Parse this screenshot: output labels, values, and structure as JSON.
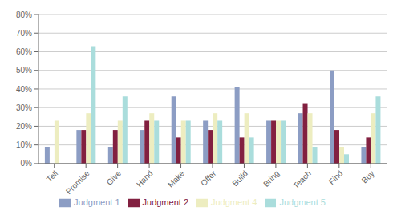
{
  "chart_data": {
    "type": "bar",
    "categories": [
      "Tell",
      "Promise",
      "Give",
      "Hand",
      "Make",
      "Offer",
      "Build",
      "Bring",
      "Teach",
      "Find",
      "Buy"
    ],
    "series": [
      {
        "name": "Judgment 1",
        "color": "#8C9DC4",
        "values": [
          9,
          18,
          9,
          18,
          36,
          23,
          41,
          23,
          27,
          50,
          9
        ]
      },
      {
        "name": "Judgment 2",
        "color": "#822040",
        "values": [
          0,
          18,
          18,
          23,
          14,
          18,
          14,
          23,
          32,
          18,
          14
        ]
      },
      {
        "name": "Judgment 4",
        "color": "#EDEDC0",
        "values": [
          23,
          27,
          23,
          27,
          23,
          27,
          27,
          23,
          27,
          9,
          27
        ]
      },
      {
        "name": "Judgment 5",
        "color": "#AADDDC",
        "values": [
          0,
          63,
          36,
          23,
          23,
          23,
          14,
          23,
          9,
          5,
          36
        ]
      }
    ],
    "ylim": [
      0,
      80
    ],
    "yticks": [
      {
        "value": 0,
        "label": "0%"
      },
      {
        "value": 10,
        "label": "10%"
      },
      {
        "value": 20,
        "label": "20%"
      },
      {
        "value": 30,
        "label": "30%"
      },
      {
        "value": 40,
        "label": "40%"
      },
      {
        "value": 50,
        "label": "50%"
      },
      {
        "value": 60,
        "label": "60%"
      },
      {
        "value": 70,
        "label": "70%"
      },
      {
        "value": 80,
        "label": "80%"
      }
    ],
    "grid": true,
    "legend": "bottom"
  }
}
